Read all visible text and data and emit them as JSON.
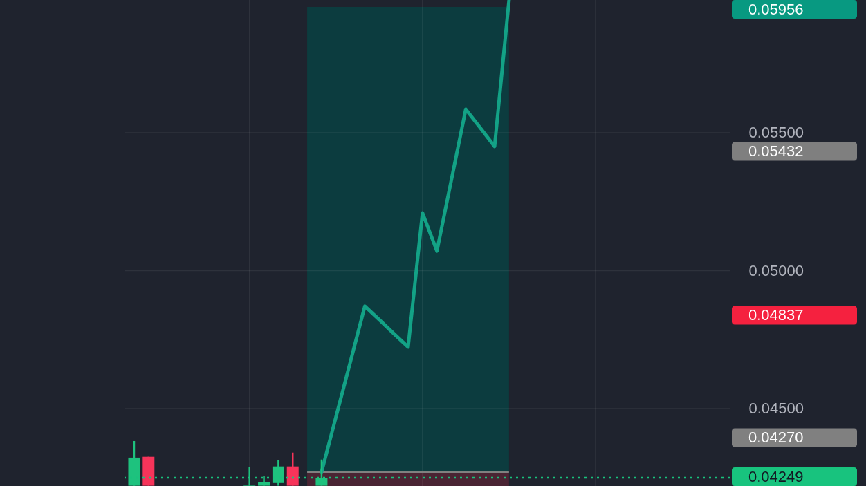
{
  "chart_data": {
    "type": "candlestick",
    "categories": [
      null,
      null,
      null,
      null,
      null,
      null,
      null,
      null,
      null,
      null,
      null,
      null,
      null,
      null,
      null,
      null,
      null,
      null,
      null,
      null,
      null,
      null,
      null,
      null,
      null,
      null,
      null,
      null,
      null,
      null,
      null,
      null,
      null,
      null,
      null,
      null,
      null,
      null,
      null,
      null,
      null,
      null
    ],
    "ohlc": [
      [
        0.0422,
        0.04382,
        0.0422,
        0.04322
      ],
      [
        0.04325,
        0.04325,
        0.0422,
        0.0422
      ],
      null,
      null,
      null,
      null,
      null,
      null,
      [
        0.0422,
        0.04287,
        0.0422,
        0.04222
      ],
      [
        0.0422,
        0.04254,
        0.0422,
        0.04234
      ],
      [
        0.04232,
        0.04312,
        0.0422,
        0.0429
      ],
      [
        0.0429,
        0.0434,
        0.0422,
        0.0422
      ],
      null,
      [
        0.0422,
        0.04315,
        0.0422,
        0.04249
      ],
      null,
      null,
      null,
      null,
      null,
      null,
      null,
      null,
      null,
      null,
      null,
      null,
      null,
      null,
      null,
      null,
      null,
      null,
      null,
      null,
      null,
      null,
      null,
      null,
      null,
      null,
      null,
      null
    ],
    "colors": [
      "#1ec27e",
      "#f7345a",
      null,
      null,
      null,
      null,
      null,
      null,
      "#1ec27e",
      "#1ec27e",
      "#1ec27e",
      "#f7345a",
      null,
      "#1ec27e",
      null,
      null,
      null,
      null,
      null,
      null,
      null,
      null,
      null,
      null,
      null,
      null,
      null,
      null,
      null,
      null,
      null,
      null,
      null,
      null,
      null,
      null,
      null,
      null,
      null,
      null,
      null,
      null
    ],
    "series": [
      {
        "type": "line",
        "color": "#13a286",
        "values": [
          null,
          null,
          null,
          null,
          null,
          null,
          null,
          null,
          null,
          null,
          null,
          null,
          null,
          0.0427,
          0.0447,
          0.0467,
          0.04871,
          0.04822,
          0.04772,
          0.04723,
          0.05209,
          0.05071,
          0.05328,
          0.05585,
          0.05518,
          0.0545,
          0.0598,
          null,
          null,
          null,
          null,
          null,
          null,
          null,
          null,
          null,
          null,
          null,
          null,
          null,
          null,
          null
        ]
      }
    ],
    "ylim": [
      0.04219,
      0.05981
    ],
    "yticks": [
      {
        "value": 0.045,
        "label": "0.04500"
      },
      {
        "value": 0.05,
        "label": "0.05000"
      },
      {
        "value": 0.055,
        "label": "0.05500"
      }
    ],
    "bands": [
      {
        "axis": "y",
        "from": 0.0427,
        "to": 0.05956,
        "color": "#0c3c3f"
      },
      {
        "axis": "y",
        "from": 0.04219,
        "to": 0.0427,
        "color": "#4a2433"
      }
    ],
    "ref_lines": [
      {
        "axis": "y",
        "value": 0.0427,
        "color": "#808080",
        "line_style": "solid"
      },
      {
        "axis": "y",
        "value": 0.04249,
        "color": "#18c37e",
        "line_style": "dotted"
      }
    ],
    "annotations": [
      "0.05956",
      "0.05432",
      "0.04837",
      "0.04270",
      "0.04249"
    ],
    "grid": true,
    "tick_labels": "y"
  }
}
